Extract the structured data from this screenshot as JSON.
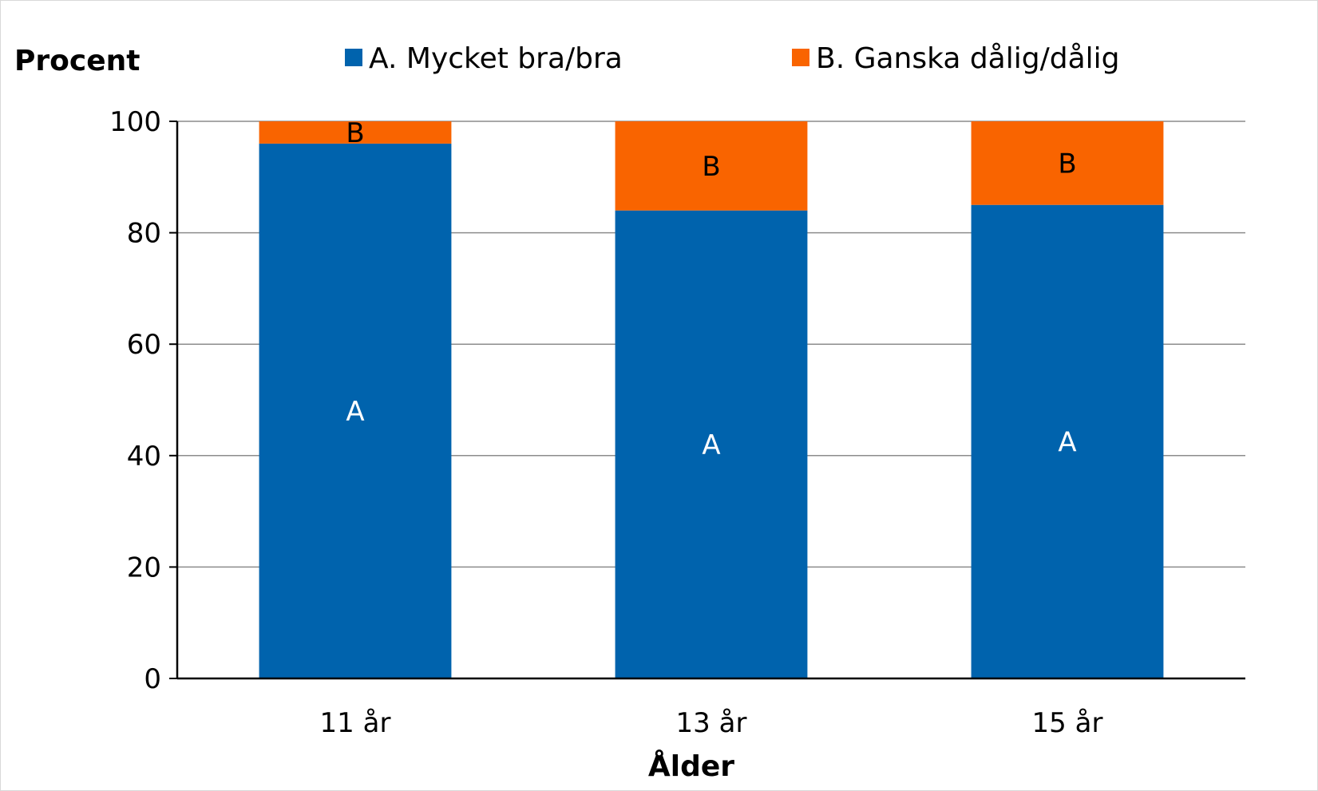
{
  "chart_data": {
    "type": "bar",
    "stacked": true,
    "ylabel": "Procent",
    "xlabel": "Ålder",
    "categories": [
      "11 år",
      "13 år",
      "15 år"
    ],
    "ylim": [
      0,
      100
    ],
    "yticks": [
      0,
      20,
      40,
      60,
      80,
      100
    ],
    "grid": true,
    "legend_position": "top",
    "series": [
      {
        "name": "A. Mycket bra/bra",
        "label": "A",
        "color": "#0063AD",
        "label_color": "#ffffff",
        "values": [
          96,
          84,
          85
        ]
      },
      {
        "name": "B. Ganska dålig/dålig",
        "label": "B",
        "color": "#F96400",
        "label_color": "#000000",
        "values": [
          4,
          16,
          15
        ]
      }
    ]
  }
}
